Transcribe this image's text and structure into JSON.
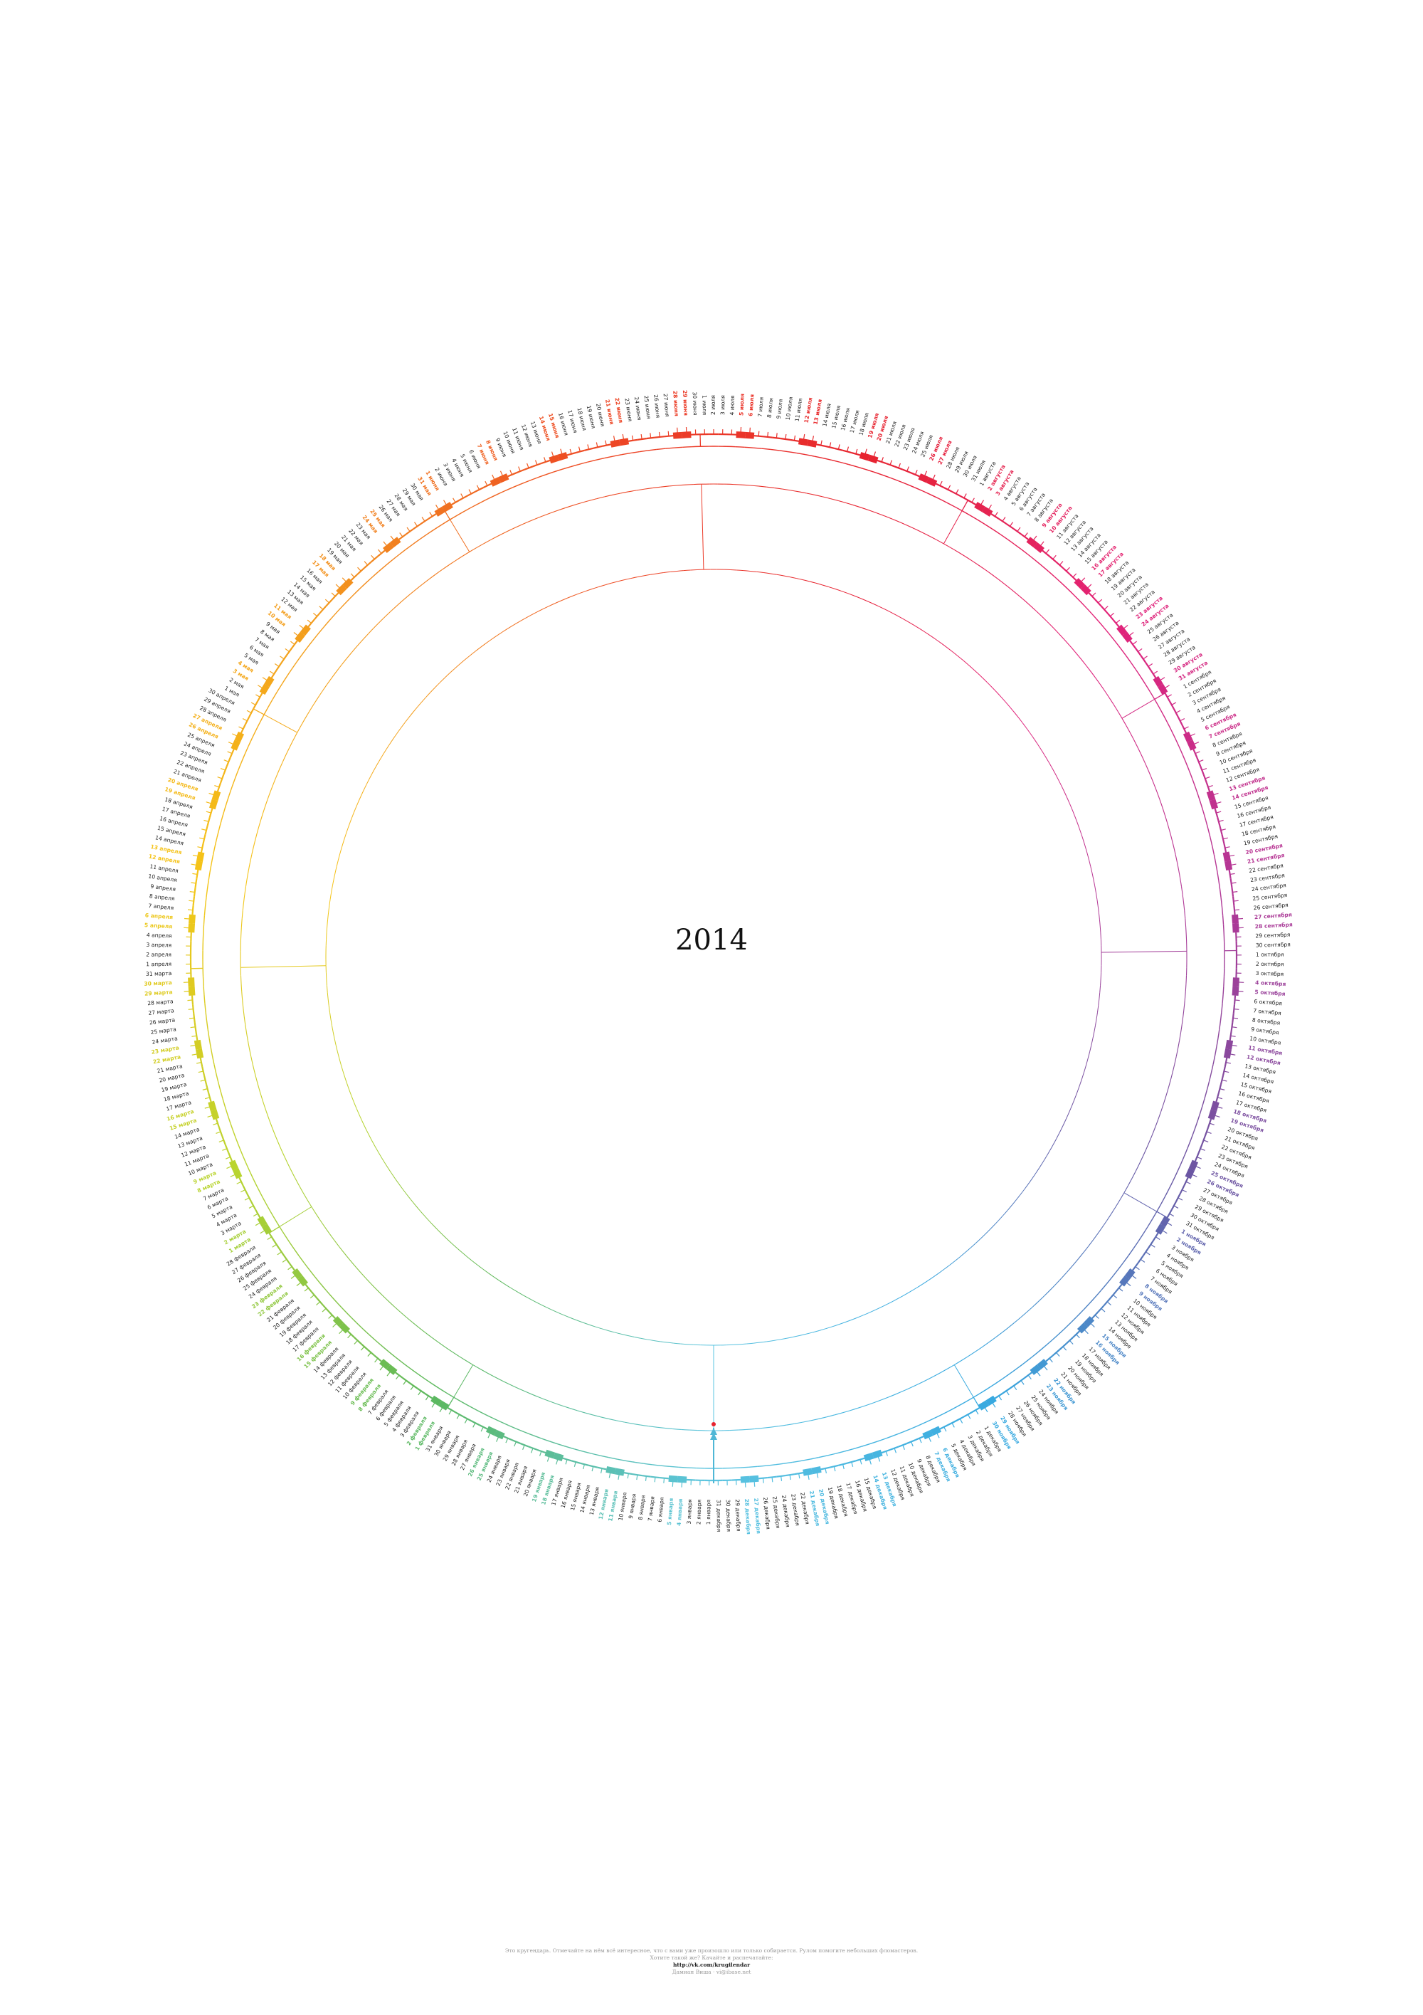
{
  "poster": {
    "year": "2014",
    "footer": {
      "line1": "Это кругендарь. Отмечайте на нём всё интересное, что с вами уже произошло или только собирается. Рулом помогите небольших фломастеров.",
      "line2": "Хотите такой же? Качайте и распечатайте:",
      "link": "http://vk.com/krugilendar",
      "credits": "Дамиан Виша · vi@ibase.net"
    }
  },
  "calendar": {
    "first_weekday": "wednesday",
    "months": [
      {
        "name": "января",
        "days": 31
      },
      {
        "name": "февраля",
        "days": 28
      },
      {
        "name": "марта",
        "days": 31
      },
      {
        "name": "апреля",
        "days": 30
      },
      {
        "name": "мая",
        "days": 31
      },
      {
        "name": "июня",
        "days": 30
      },
      {
        "name": "июля",
        "days": 31
      },
      {
        "name": "августа",
        "days": 31
      },
      {
        "name": "сентября",
        "days": 30
      },
      {
        "name": "октября",
        "days": 31
      },
      {
        "name": "ноября",
        "days": 30
      },
      {
        "name": "декабря",
        "days": 31
      }
    ]
  },
  "colors": {
    "weekday_text": "#222222",
    "stops": [
      "#5bc4e0",
      "#5cb85c",
      "#b9d42e",
      "#f5c518",
      "#f39a1d",
      "#ee4d23",
      "#e7232f",
      "#e2237a",
      "#b33796",
      "#6a57a3",
      "#38a9e0",
      "#5bc4e0"
    ]
  }
}
